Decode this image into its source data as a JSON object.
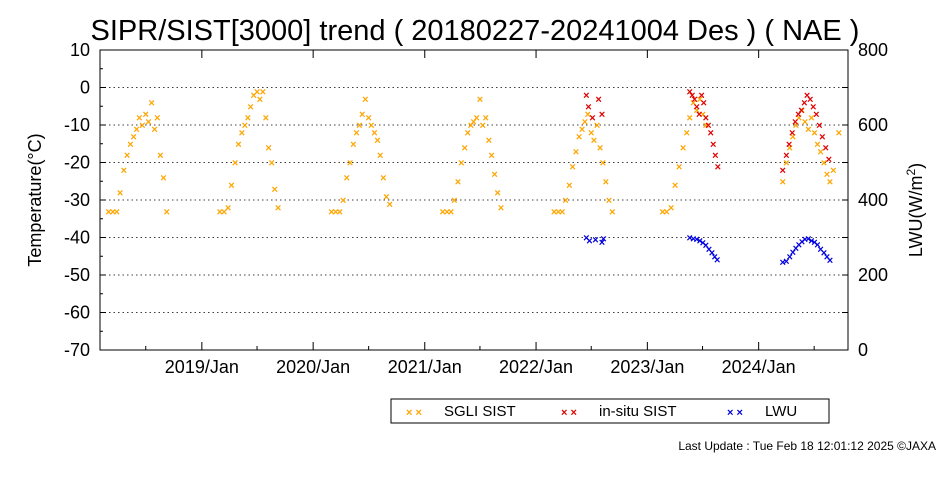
{
  "chart_data": {
    "type": "scatter",
    "title": "SIPR/SIST[3000] trend ( 20180227-20241004 Des ) ( NAE )",
    "ylabel": "Temperature(°C)",
    "y2label_main": "LWU(W/m",
    "y2label_sup": "2",
    "y2label_end": ")",
    "ylim": [
      -70,
      10
    ],
    "y2lim": [
      0,
      800
    ],
    "xlim": [
      "2018-02-01",
      "2024-10-20"
    ],
    "yticks": [
      "10",
      "0",
      "-10",
      "-20",
      "-30",
      "-40",
      "-50",
      "-60",
      "-70"
    ],
    "y2ticks": [
      "800",
      "600",
      "400",
      "200",
      "0"
    ],
    "xticks": [
      {
        "date": "2019-01-01",
        "label": "2019/Jan"
      },
      {
        "date": "2020-01-01",
        "label": "2020/Jan"
      },
      {
        "date": "2021-01-01",
        "label": "2021/Jan"
      },
      {
        "date": "2022-01-01",
        "label": "2022/Jan"
      },
      {
        "date": "2023-01-01",
        "label": "2023/Jan"
      },
      {
        "date": "2024-01-01",
        "label": "2024/Jan"
      }
    ],
    "grid": "horizontal-dotted",
    "legend_position": "bottom",
    "marker": "×",
    "series": [
      {
        "name": "SGLI SIST",
        "color": "#ffa500",
        "axis": "left",
        "points": [
          [
            "2018-03-01",
            -33
          ],
          [
            "2018-03-15",
            -33
          ],
          [
            "2018-03-28",
            -33
          ],
          [
            "2018-04-08",
            -28
          ],
          [
            "2018-04-20",
            -22
          ],
          [
            "2018-05-01",
            -18
          ],
          [
            "2018-05-12",
            -15
          ],
          [
            "2018-05-22",
            -13
          ],
          [
            "2018-06-01",
            -11
          ],
          [
            "2018-06-10",
            -8
          ],
          [
            "2018-06-20",
            -10
          ],
          [
            "2018-07-01",
            -7
          ],
          [
            "2018-07-10",
            -9
          ],
          [
            "2018-07-20",
            -4
          ],
          [
            "2018-07-30",
            -11
          ],
          [
            "2018-08-08",
            -8
          ],
          [
            "2018-08-18",
            -18
          ],
          [
            "2018-08-28",
            -24
          ],
          [
            "2018-09-08",
            -33
          ],
          [
            "2019-03-01",
            -33
          ],
          [
            "2019-03-15",
            -33
          ],
          [
            "2019-03-28",
            -32
          ],
          [
            "2019-04-08",
            -26
          ],
          [
            "2019-04-20",
            -20
          ],
          [
            "2019-05-01",
            -15
          ],
          [
            "2019-05-12",
            -12
          ],
          [
            "2019-05-22",
            -10
          ],
          [
            "2019-06-01",
            -8
          ],
          [
            "2019-06-10",
            -5
          ],
          [
            "2019-06-20",
            -2
          ],
          [
            "2019-07-01",
            -1
          ],
          [
            "2019-07-10",
            -3
          ],
          [
            "2019-07-20",
            -1
          ],
          [
            "2019-07-30",
            -8
          ],
          [
            "2019-08-08",
            -16
          ],
          [
            "2019-08-18",
            -20
          ],
          [
            "2019-08-28",
            -27
          ],
          [
            "2019-09-08",
            -32
          ],
          [
            "2020-03-01",
            -33
          ],
          [
            "2020-03-15",
            -33
          ],
          [
            "2020-03-28",
            -33
          ],
          [
            "2020-04-08",
            -30
          ],
          [
            "2020-04-20",
            -24
          ],
          [
            "2020-05-01",
            -20
          ],
          [
            "2020-05-12",
            -15
          ],
          [
            "2020-05-22",
            -12
          ],
          [
            "2020-06-01",
            -10
          ],
          [
            "2020-06-10",
            -7
          ],
          [
            "2020-06-20",
            -3
          ],
          [
            "2020-07-01",
            -8
          ],
          [
            "2020-07-10",
            -10
          ],
          [
            "2020-07-20",
            -12
          ],
          [
            "2020-07-30",
            -14
          ],
          [
            "2020-08-08",
            -18
          ],
          [
            "2020-08-18",
            -24
          ],
          [
            "2020-08-28",
            -29
          ],
          [
            "2020-09-08",
            -31
          ],
          [
            "2021-03-01",
            -33
          ],
          [
            "2021-03-15",
            -33
          ],
          [
            "2021-03-28",
            -33
          ],
          [
            "2021-04-08",
            -30
          ],
          [
            "2021-04-20",
            -25
          ],
          [
            "2021-05-01",
            -20
          ],
          [
            "2021-05-12",
            -16
          ],
          [
            "2021-05-22",
            -12
          ],
          [
            "2021-06-01",
            -10
          ],
          [
            "2021-06-10",
            -9
          ],
          [
            "2021-06-20",
            -8
          ],
          [
            "2021-07-01",
            -3
          ],
          [
            "2021-07-10",
            -10
          ],
          [
            "2021-07-20",
            -8
          ],
          [
            "2021-07-30",
            -14
          ],
          [
            "2021-08-08",
            -18
          ],
          [
            "2021-08-18",
            -23
          ],
          [
            "2021-08-28",
            -28
          ],
          [
            "2021-09-08",
            -32
          ],
          [
            "2022-03-01",
            -33
          ],
          [
            "2022-03-15",
            -33
          ],
          [
            "2022-03-28",
            -33
          ],
          [
            "2022-04-08",
            -30
          ],
          [
            "2022-04-20",
            -26
          ],
          [
            "2022-05-01",
            -21
          ],
          [
            "2022-05-12",
            -17
          ],
          [
            "2022-05-22",
            -13
          ],
          [
            "2022-06-01",
            -11
          ],
          [
            "2022-06-10",
            -9
          ],
          [
            "2022-06-20",
            -7
          ],
          [
            "2022-07-01",
            -12
          ],
          [
            "2022-07-10",
            -14
          ],
          [
            "2022-07-20",
            -10
          ],
          [
            "2022-07-30",
            -16
          ],
          [
            "2022-08-08",
            -20
          ],
          [
            "2022-08-18",
            -25
          ],
          [
            "2022-08-28",
            -30
          ],
          [
            "2022-09-08",
            -33
          ],
          [
            "2023-02-20",
            -33
          ],
          [
            "2023-03-05",
            -33
          ],
          [
            "2023-03-20",
            -32
          ],
          [
            "2023-04-02",
            -26
          ],
          [
            "2023-04-15",
            -21
          ],
          [
            "2023-04-28",
            -16
          ],
          [
            "2023-05-10",
            -12
          ],
          [
            "2023-05-20",
            -8
          ],
          [
            "2023-06-01",
            -4
          ],
          [
            "2023-06-12",
            -6
          ],
          [
            "2023-06-22",
            -3
          ],
          [
            "2023-07-02",
            -7
          ],
          [
            "2023-07-12",
            -10
          ],
          [
            "2024-03-20",
            -25
          ],
          [
            "2024-04-01",
            -20
          ],
          [
            "2024-04-12",
            -16
          ],
          [
            "2024-04-22",
            -13
          ],
          [
            "2024-05-02",
            -10
          ],
          [
            "2024-05-12",
            -8
          ],
          [
            "2024-05-22",
            -6
          ],
          [
            "2024-06-01",
            -9
          ],
          [
            "2024-06-12",
            -11
          ],
          [
            "2024-06-22",
            -8
          ],
          [
            "2024-07-02",
            -12
          ],
          [
            "2024-07-12",
            -15
          ],
          [
            "2024-07-22",
            -17
          ],
          [
            "2024-08-02",
            -20
          ],
          [
            "2024-08-12",
            -23
          ],
          [
            "2024-08-22",
            -25
          ],
          [
            "2024-09-02",
            -22
          ],
          [
            "2024-09-20",
            -12
          ]
        ]
      },
      {
        "name": "in-situ SIST",
        "color": "#e00000",
        "axis": "left",
        "points": [
          [
            "2022-06-15",
            -2
          ],
          [
            "2022-06-22",
            -5
          ],
          [
            "2022-07-05",
            -8
          ],
          [
            "2022-07-25",
            -3
          ],
          [
            "2022-08-05",
            -7
          ],
          [
            "2023-05-20",
            -1
          ],
          [
            "2023-05-28",
            -2
          ],
          [
            "2023-06-05",
            -3
          ],
          [
            "2023-06-12",
            -5
          ],
          [
            "2023-06-20",
            -7
          ],
          [
            "2023-06-28",
            -2
          ],
          [
            "2023-07-05",
            -4
          ],
          [
            "2023-07-12",
            -8
          ],
          [
            "2023-07-20",
            -10
          ],
          [
            "2023-07-28",
            -12
          ],
          [
            "2023-08-05",
            -15
          ],
          [
            "2023-08-12",
            -18
          ],
          [
            "2023-08-20",
            -21
          ],
          [
            "2024-03-20",
            -22
          ],
          [
            "2024-04-01",
            -18
          ],
          [
            "2024-04-10",
            -15
          ],
          [
            "2024-04-20",
            -12
          ],
          [
            "2024-04-30",
            -9
          ],
          [
            "2024-05-10",
            -7
          ],
          [
            "2024-05-20",
            -6
          ],
          [
            "2024-05-30",
            -4
          ],
          [
            "2024-06-08",
            -2
          ],
          [
            "2024-06-18",
            -3
          ],
          [
            "2024-06-28",
            -5
          ],
          [
            "2024-07-08",
            -7
          ],
          [
            "2024-07-18",
            -10
          ],
          [
            "2024-07-28",
            -13
          ],
          [
            "2024-08-08",
            -16
          ],
          [
            "2024-08-18",
            -19
          ]
        ]
      },
      {
        "name": "LWU",
        "color": "#0000e0",
        "axis": "right",
        "points": [
          [
            "2022-06-15",
            300
          ],
          [
            "2022-06-25",
            292
          ],
          [
            "2022-07-15",
            295
          ],
          [
            "2022-08-05",
            288
          ],
          [
            "2022-08-10",
            298
          ],
          [
            "2023-05-20",
            300
          ],
          [
            "2023-06-01",
            298
          ],
          [
            "2023-06-12",
            296
          ],
          [
            "2023-06-22",
            292
          ],
          [
            "2023-07-02",
            287
          ],
          [
            "2023-07-12",
            280
          ],
          [
            "2023-07-22",
            270
          ],
          [
            "2023-08-01",
            260
          ],
          [
            "2023-08-10",
            250
          ],
          [
            "2023-08-18",
            242
          ],
          [
            "2024-03-20",
            235
          ],
          [
            "2024-04-01",
            238
          ],
          [
            "2024-04-12",
            250
          ],
          [
            "2024-04-22",
            262
          ],
          [
            "2024-05-02",
            272
          ],
          [
            "2024-05-12",
            282
          ],
          [
            "2024-05-22",
            290
          ],
          [
            "2024-06-01",
            296
          ],
          [
            "2024-06-12",
            298
          ],
          [
            "2024-06-22",
            292
          ],
          [
            "2024-07-02",
            288
          ],
          [
            "2024-07-12",
            282
          ],
          [
            "2024-07-22",
            270
          ],
          [
            "2024-08-02",
            260
          ],
          [
            "2024-08-12",
            250
          ],
          [
            "2024-08-22",
            240
          ]
        ]
      }
    ]
  },
  "footer": "Last Update : Tue Feb 18 12:01:12 2025  ©JAXA"
}
